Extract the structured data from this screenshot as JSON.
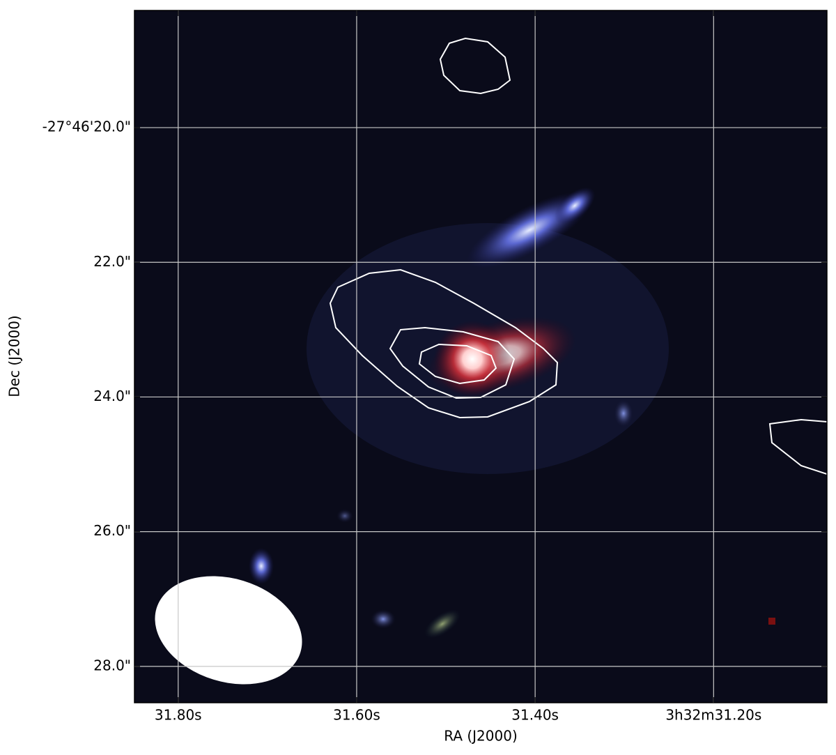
{
  "chart_data": {
    "type": "image",
    "x_label": "RA (J2000)",
    "y_label": "Dec (J2000)",
    "xlim": [
      31.849,
      31.073
    ],
    "xticks": [
      {
        "value": 31.8,
        "label": "31.80s"
      },
      {
        "value": 31.6,
        "label": "31.60s"
      },
      {
        "value": 31.4,
        "label": "31.40s"
      },
      {
        "value": 31.2,
        "label": "3h32m31.20s"
      }
    ],
    "ylim": [
      28.54,
      18.26
    ],
    "yticks": [
      {
        "value": 20.0,
        "label": "-27°46'20.0\""
      },
      {
        "value": 22.0,
        "label": "22.0\""
      },
      {
        "value": 24.0,
        "label": "24.0\""
      },
      {
        "value": 26.0,
        "label": "26.0\""
      },
      {
        "value": 28.0,
        "label": "28.0\""
      }
    ],
    "grid": true
  }
}
